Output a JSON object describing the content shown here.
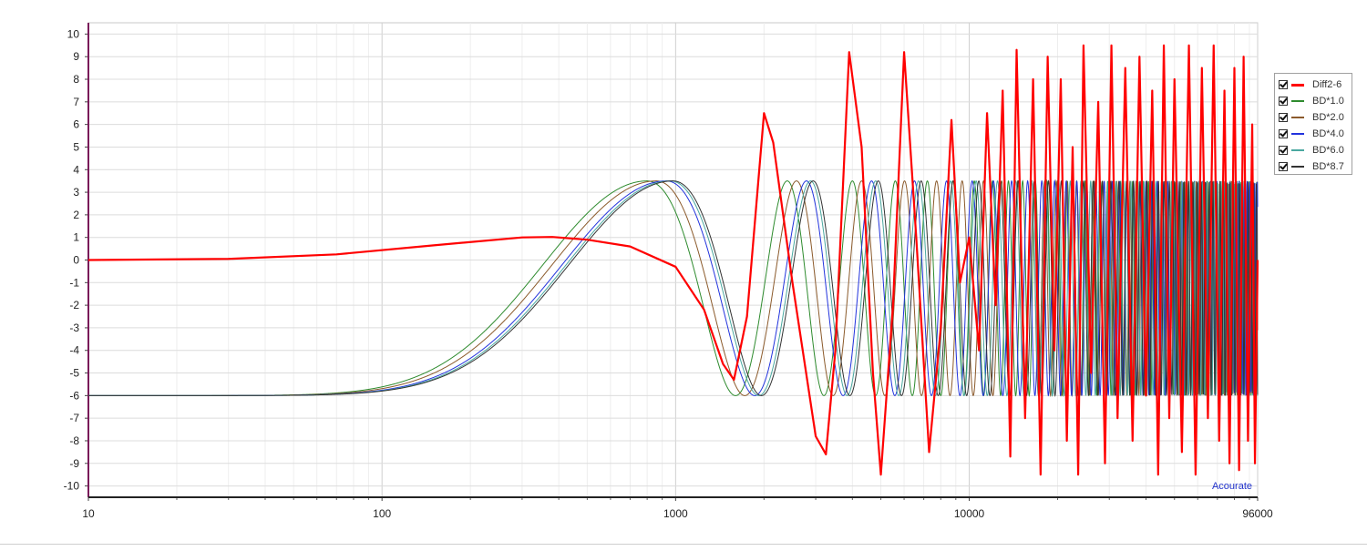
{
  "chart_data": {
    "type": "line",
    "title": "",
    "xlabel": "",
    "ylabel": "",
    "x_scale": "log",
    "xlim": [
      10,
      96000
    ],
    "ylim": [
      -10.5,
      10.5
    ],
    "x_ticks": [
      {
        "value": 10,
        "label": "10"
      },
      {
        "value": 100,
        "label": "100"
      },
      {
        "value": 1000,
        "label": "1000"
      },
      {
        "value": 10000,
        "label": "10000"
      },
      {
        "value": 96000,
        "label": "96000"
      }
    ],
    "y_ticks": [
      10,
      9,
      8,
      7,
      6,
      5,
      4,
      3,
      2,
      1,
      0,
      -1,
      -2,
      -3,
      -4,
      -5,
      -6,
      -7,
      -8,
      -9,
      -10
    ],
    "grid": true,
    "legend_position": "right",
    "series": [
      {
        "name": "Diff2-6",
        "color": "#ff0000",
        "points": [
          [
            10,
            0
          ],
          [
            30,
            0.05
          ],
          [
            70,
            0.25
          ],
          [
            150,
            0.65
          ],
          [
            300,
            1.0
          ],
          [
            380,
            1.02
          ],
          [
            500,
            0.9
          ],
          [
            700,
            0.6
          ],
          [
            1000,
            -0.3
          ],
          [
            1250,
            -2.2
          ],
          [
            1450,
            -4.6
          ],
          [
            1580,
            -5.3
          ],
          [
            1750,
            -2.5
          ],
          [
            2000,
            6.5
          ],
          [
            2150,
            5.2
          ],
          [
            2500,
            -1.0
          ],
          [
            3000,
            -7.8
          ],
          [
            3250,
            -8.6
          ],
          [
            3500,
            -4.0
          ],
          [
            3900,
            9.2
          ],
          [
            4300,
            5.0
          ],
          [
            4700,
            -5.0
          ],
          [
            5000,
            -9.5
          ],
          [
            5500,
            -2.0
          ],
          [
            6000,
            9.2
          ],
          [
            6600,
            1.0
          ],
          [
            7300,
            -8.5
          ],
          [
            8000,
            -3.0
          ],
          [
            8700,
            6.2
          ],
          [
            9300,
            -1.0
          ],
          [
            10000,
            1.0
          ],
          [
            10800,
            -4.0
          ],
          [
            11500,
            6.5
          ],
          [
            12300,
            -2.0
          ],
          [
            13000,
            7.5
          ],
          [
            13800,
            -8.7
          ],
          [
            14500,
            9.3
          ],
          [
            15500,
            -7.0
          ],
          [
            16500,
            8.0
          ],
          [
            17500,
            -9.5
          ],
          [
            18500,
            9.0
          ],
          [
            19500,
            -4.0
          ],
          [
            20500,
            8.0
          ],
          [
            21500,
            -8.0
          ],
          [
            22500,
            5.0
          ],
          [
            23500,
            -9.5
          ],
          [
            24500,
            9.5
          ],
          [
            26000,
            -5.0
          ],
          [
            27500,
            7.0
          ],
          [
            29000,
            -9.0
          ],
          [
            30500,
            9.5
          ],
          [
            32000,
            -7.0
          ],
          [
            34000,
            8.5
          ],
          [
            36000,
            -8.0
          ],
          [
            38000,
            9.0
          ],
          [
            40000,
            -6.0
          ],
          [
            42000,
            7.5
          ],
          [
            44000,
            -9.5
          ],
          [
            46000,
            9.5
          ],
          [
            48000,
            -7.0
          ],
          [
            50000,
            8.0
          ],
          [
            53000,
            -8.5
          ],
          [
            56000,
            9.5
          ],
          [
            59000,
            -9.5
          ],
          [
            62000,
            8.5
          ],
          [
            65000,
            -7.0
          ],
          [
            68000,
            9.5
          ],
          [
            71000,
            -8.0
          ],
          [
            74000,
            7.5
          ],
          [
            77000,
            -9.0
          ],
          [
            80000,
            8.5
          ],
          [
            83000,
            -9.3
          ],
          [
            86000,
            9.0
          ],
          [
            89000,
            -8.0
          ],
          [
            92000,
            6.0
          ],
          [
            94000,
            -9.0
          ],
          [
            96000,
            0
          ]
        ]
      },
      {
        "name": "BD*1.0",
        "color": "#2e8b2e"
      },
      {
        "name": "BD*2.0",
        "color": "#8b5a2b"
      },
      {
        "name": "BD*4.0",
        "color": "#2233dd"
      },
      {
        "name": "BD*6.0",
        "color": "#4aa8a0"
      },
      {
        "name": "BD*8.7",
        "color": "#333333"
      }
    ],
    "annotations": [
      "Acourate"
    ]
  }
}
